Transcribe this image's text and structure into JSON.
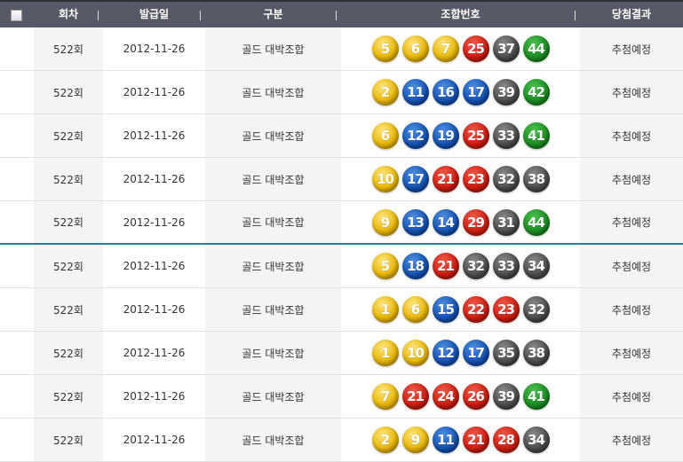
{
  "header": {
    "round": "회차",
    "issue_date": "발급일",
    "type": "구분",
    "numbers": "조합번호",
    "result": "당첨결과"
  },
  "ball_colors": {
    "1-10": "#e6b400",
    "11-20": "#1450b0",
    "21-30": "#c91c10",
    "31-40": "#4a4a4a",
    "41-45": "#1b8a22"
  },
  "rows": [
    {
      "round": "522회",
      "date": "2012-11-26",
      "type": "골드 대박조합",
      "numbers": [
        5,
        6,
        7,
        25,
        37,
        44
      ],
      "result": "추첨예정"
    },
    {
      "round": "522회",
      "date": "2012-11-26",
      "type": "골드 대박조합",
      "numbers": [
        2,
        11,
        16,
        17,
        39,
        42
      ],
      "result": "추첨예정"
    },
    {
      "round": "522회",
      "date": "2012-11-26",
      "type": "골드 대박조합",
      "numbers": [
        6,
        12,
        19,
        25,
        33,
        41
      ],
      "result": "추첨예정"
    },
    {
      "round": "522회",
      "date": "2012-11-26",
      "type": "골드 대박조합",
      "numbers": [
        10,
        17,
        21,
        23,
        32,
        38
      ],
      "result": "추첨예정"
    },
    {
      "round": "522회",
      "date": "2012-11-26",
      "type": "골드 대박조합",
      "numbers": [
        9,
        13,
        14,
        29,
        31,
        44
      ],
      "result": "추첨예정"
    },
    {
      "round": "522회",
      "date": "2012-11-26",
      "type": "골드 대박조합",
      "numbers": [
        5,
        18,
        21,
        32,
        33,
        34
      ],
      "result": "추첨예정"
    },
    {
      "round": "522회",
      "date": "2012-11-26",
      "type": "골드 대박조합",
      "numbers": [
        1,
        6,
        15,
        22,
        23,
        32
      ],
      "result": "추첨예정"
    },
    {
      "round": "522회",
      "date": "2012-11-26",
      "type": "골드 대박조합",
      "numbers": [
        1,
        10,
        12,
        17,
        35,
        38
      ],
      "result": "추첨예정"
    },
    {
      "round": "522회",
      "date": "2012-11-26",
      "type": "골드 대박조합",
      "numbers": [
        7,
        21,
        24,
        26,
        39,
        41
      ],
      "result": "추첨예정"
    },
    {
      "round": "522회",
      "date": "2012-11-26",
      "type": "골드 대박조합",
      "numbers": [
        2,
        9,
        11,
        21,
        28,
        34
      ],
      "result": "추첨예정"
    }
  ]
}
